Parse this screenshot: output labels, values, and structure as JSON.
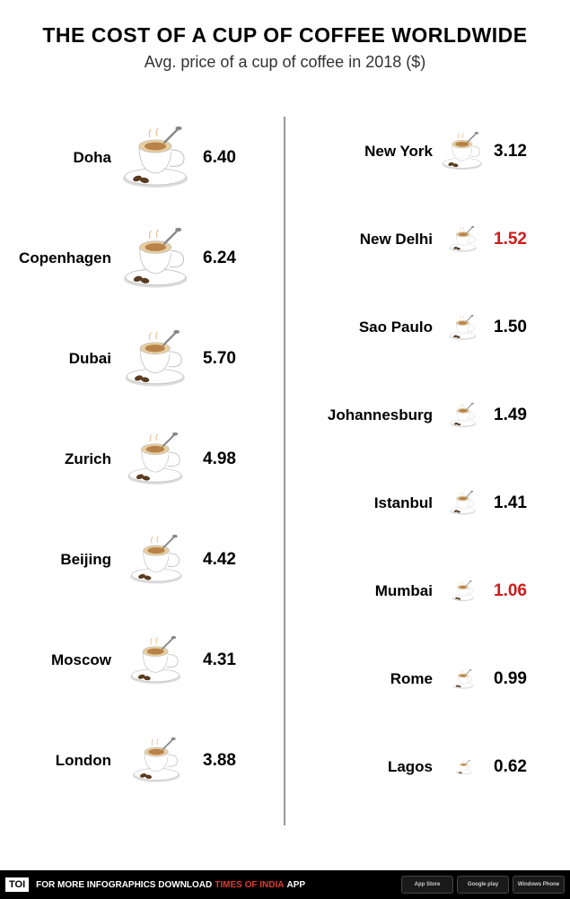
{
  "header": {
    "title": "THE COST OF A CUP OF COFFEE WORLDWIDE",
    "subtitle": "Avg. price of a cup of coffee in 2018 ($)"
  },
  "chart": {
    "colors": {
      "text": "#000000",
      "highlight": "#d11a1a",
      "divider": "#999999",
      "background": "#ffffff",
      "cup_body": "#ffffff",
      "cup_shadow": "#dcdcdc",
      "cup_rim": "#bfbfbf",
      "coffee_top": "#b8834a",
      "foam": "#e8cfa0",
      "bean": "#5a3b1f",
      "spoon": "#888888"
    },
    "left": [
      {
        "city": "Doha",
        "price": "6.40",
        "cup_scale": 1.0
      },
      {
        "city": "Copenhagen",
        "price": "6.24",
        "cup_scale": 0.98
      },
      {
        "city": "Dubai",
        "price": "5.70",
        "cup_scale": 0.92
      },
      {
        "city": "Zurich",
        "price": "4.98",
        "cup_scale": 0.85
      },
      {
        "city": "Beijing",
        "price": "4.42",
        "cup_scale": 0.8
      },
      {
        "city": "Moscow",
        "price": "4.31",
        "cup_scale": 0.78
      },
      {
        "city": "London",
        "price": "3.88",
        "cup_scale": 0.73
      }
    ],
    "right": [
      {
        "city": "New York",
        "price": "3.12",
        "cup_scale": 0.62
      },
      {
        "city": "New Delhi",
        "price": "1.52",
        "cup_scale": 0.42,
        "highlight": true
      },
      {
        "city": "Sao Paulo",
        "price": "1.50",
        "cup_scale": 0.41
      },
      {
        "city": "Johannesburg",
        "price": "1.49",
        "cup_scale": 0.4
      },
      {
        "city": "Istanbul",
        "price": "1.41",
        "cup_scale": 0.39
      },
      {
        "city": "Mumbai",
        "price": "1.06",
        "cup_scale": 0.34,
        "highlight": true
      },
      {
        "city": "Rome",
        "price": "0.99",
        "cup_scale": 0.32
      },
      {
        "city": "Lagos",
        "price": "0.62",
        "cup_scale": 0.24
      }
    ]
  },
  "footer": {
    "badge": "TOI",
    "text_prefix": "FOR MORE  INFOGRAPHICS DOWNLOAD",
    "text_highlight": "TIMES OF INDIA",
    "text_suffix": "APP",
    "stores": [
      "App Store",
      "Google play",
      "Windows Phone"
    ]
  }
}
